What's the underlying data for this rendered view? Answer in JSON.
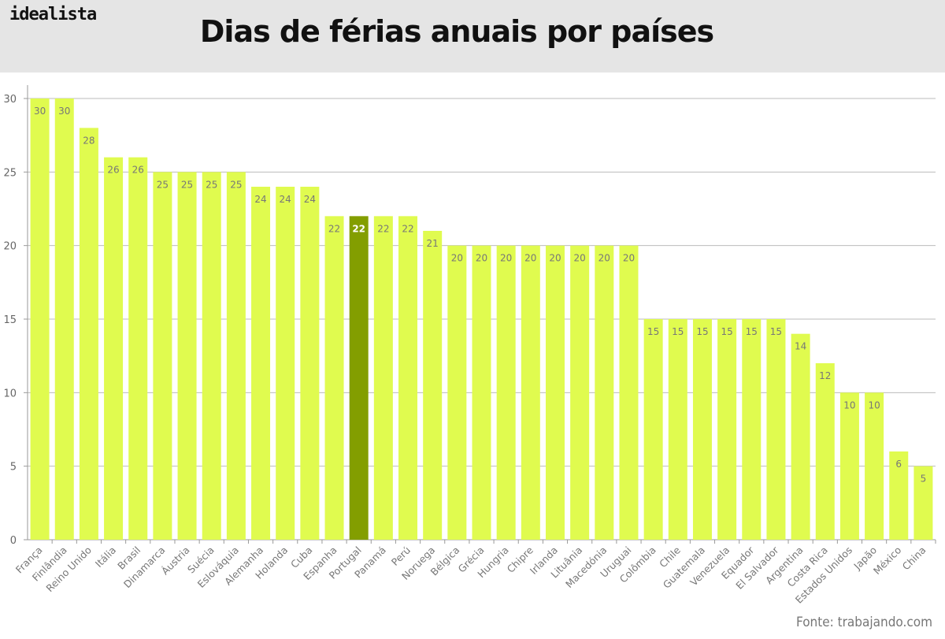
{
  "logo": "idealista",
  "source": "Fonte: trabajando.com",
  "chart_data": {
    "type": "bar",
    "title": "Dias de férias anuais por países",
    "xlabel": "",
    "ylabel": "",
    "ylim": [
      0,
      30
    ],
    "yticks": [
      0,
      5,
      10,
      15,
      20,
      25,
      30
    ],
    "grid": true,
    "categories": [
      "França",
      "Finlândia",
      "Reino Unido",
      "Itália",
      "Brasil",
      "Dinamarca",
      "Áustria",
      "Suécia",
      "Eslováquia",
      "Alemanha",
      "Holanda",
      "Cuba",
      "Espanha",
      "Portugal",
      "Panamá",
      "Perú",
      "Noruega",
      "Bélgica",
      "Grécia",
      "Hungria",
      "Chipre",
      "Irlanda",
      "Lituânia",
      "Macedónia",
      "Uruguai",
      "Colômbia",
      "Chile",
      "Guatemala",
      "Venezuela",
      "Equador",
      "El Salvador",
      "Argentina",
      "Costa Rica",
      "Estados Unidos",
      "Japão",
      "México",
      "China"
    ],
    "values": [
      30,
      30,
      28,
      26,
      26,
      25,
      25,
      25,
      25,
      24,
      24,
      24,
      22,
      22,
      22,
      22,
      21,
      20,
      20,
      20,
      20,
      20,
      20,
      20,
      20,
      15,
      15,
      15,
      15,
      15,
      15,
      14,
      12,
      10,
      10,
      6,
      5
    ],
    "highlight": "Portugal",
    "colors": {
      "bar": "#e0fb4f",
      "highlight": "#839e00",
      "grid": "#bbbbbb"
    }
  }
}
